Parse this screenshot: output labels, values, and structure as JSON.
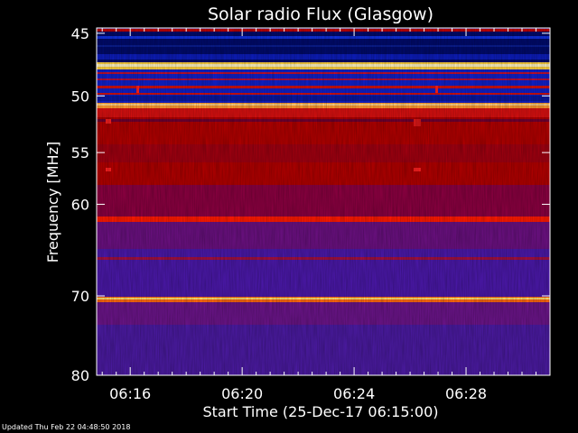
{
  "chart_data": {
    "type": "heatmap",
    "title": "Solar radio Flux (Glasgow)",
    "xlabel": "Start Time (25-Dec-17 06:15:00)",
    "ylabel": "Frequency [MHz]",
    "xlim": [
      "06:14:48",
      "06:31:00"
    ],
    "ylim": [
      44.6,
      80
    ],
    "y_scale": "log",
    "x_ticks": [
      "06:16",
      "06:20",
      "06:24",
      "06:28"
    ],
    "y_ticks": [
      45,
      50,
      55,
      60,
      70,
      80
    ],
    "colormap": "blue-red-yellow",
    "bands": [
      {
        "from": 44.8,
        "to": 45.1,
        "level": "red"
      },
      {
        "from": 45.1,
        "to": 48.3,
        "level": "dark-blue"
      },
      {
        "from": 48.3,
        "to": 49.2,
        "level": "bright-yellow"
      },
      {
        "from": 49.2,
        "to": 52.2,
        "level": "blue-with-red-lines"
      },
      {
        "from": 52.2,
        "to": 53.2,
        "level": "bright-orange"
      },
      {
        "from": 53.2,
        "to": 63.0,
        "level": "red"
      },
      {
        "from": 63.0,
        "to": 64.0,
        "level": "bright-red"
      },
      {
        "from": 64.0,
        "to": 72.0,
        "level": "purple"
      },
      {
        "from": 72.0,
        "to": 72.6,
        "level": "bright-orange"
      },
      {
        "from": 72.6,
        "to": 80.0,
        "level": "purple"
      }
    ]
  },
  "footer": "Updated Thu Feb 22 04:48:50 2018"
}
